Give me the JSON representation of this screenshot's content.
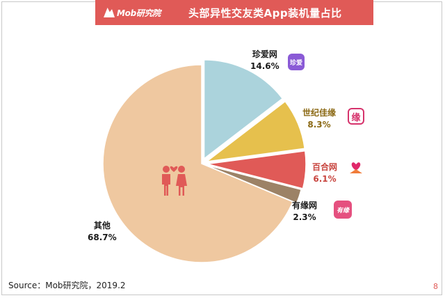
{
  "header": {
    "brand": "Mob研究院",
    "title": "头部异性交友类App装机量占比"
  },
  "colors": {
    "banner": "#e05a57",
    "brand_text": "#ffffff",
    "page_number": "#e05a57"
  },
  "chart_data": {
    "type": "pie",
    "title": "头部异性交友类App装机量占比",
    "unit": "%",
    "slices": [
      {
        "name": "珍爱网",
        "value": 14.6,
        "label": "14.6%",
        "color": "#abd3dc",
        "label_color": "#1a1a1a",
        "icon": "zhenai-app-icon",
        "icon_color": "#8a5ad6"
      },
      {
        "name": "世纪佳缘",
        "value": 8.3,
        "label": "8.3%",
        "color": "#e6c04d",
        "label_color": "#8b6914",
        "icon": "jiayuan-app-icon",
        "icon_color": "#d6336c"
      },
      {
        "name": "百合网",
        "value": 6.1,
        "label": "6.1%",
        "color": "#e05a57",
        "label_color": "#c8453f",
        "icon": "baihe-app-icon",
        "icon_color": "#e8554e"
      },
      {
        "name": "有缘网",
        "value": 2.3,
        "label": "2.3%",
        "color": "#9c8266",
        "label_color": "#1a1a1a",
        "icon": "youyuan-app-icon",
        "icon_color": "#e5507f"
      },
      {
        "name": "其他",
        "value": 68.7,
        "label": "68.7%",
        "color": "#efc8a0",
        "label_color": "#1a1a1a",
        "icon": "couple-heart-icon"
      }
    ]
  },
  "icons": {
    "zhenai": "珍爱",
    "jiayuan": "缘",
    "youyuan": "有缘"
  },
  "source": "Source：Mob研究院，2019.2",
  "page_number": "8"
}
